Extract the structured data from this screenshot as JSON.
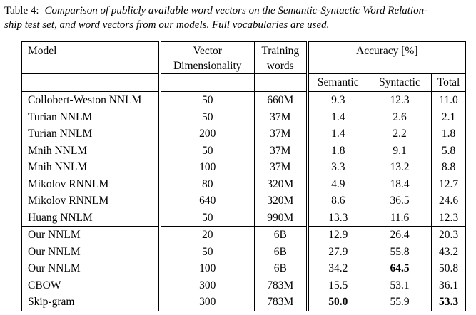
{
  "caption": {
    "label": "Table 4:",
    "line1": "Comparison of publicly available word vectors on the Semantic-Syntactic Word Relation-",
    "line2": "ship test set, and word vectors from our models. Full vocabularies are used."
  },
  "table": {
    "headers": {
      "model": "Model",
      "vector_dim_line1": "Vector",
      "vector_dim_line2": "Dimensionality",
      "training_line1": "Training",
      "training_line2": "words",
      "accuracy_group": "Accuracy [%]",
      "semantic": "Semantic",
      "syntactic": "Syntactic",
      "total": "Total"
    },
    "groups": [
      {
        "name": "public-word-vectors",
        "rows": [
          {
            "model": "Collobert-Weston NNLM",
            "dim": "50",
            "words": "660M",
            "semantic": "9.3",
            "syntactic": "12.3",
            "total": "11.0",
            "bold": []
          },
          {
            "model": "Turian NNLM",
            "dim": "50",
            "words": "37M",
            "semantic": "1.4",
            "syntactic": "2.6",
            "total": "2.1",
            "bold": []
          },
          {
            "model": "Turian NNLM",
            "dim": "200",
            "words": "37M",
            "semantic": "1.4",
            "syntactic": "2.2",
            "total": "1.8",
            "bold": []
          },
          {
            "model": "Mnih NNLM",
            "dim": "50",
            "words": "37M",
            "semantic": "1.8",
            "syntactic": "9.1",
            "total": "5.8",
            "bold": []
          },
          {
            "model": "Mnih NNLM",
            "dim": "100",
            "words": "37M",
            "semantic": "3.3",
            "syntactic": "13.2",
            "total": "8.8",
            "bold": []
          },
          {
            "model": "Mikolov RNNLM",
            "dim": "80",
            "words": "320M",
            "semantic": "4.9",
            "syntactic": "18.4",
            "total": "12.7",
            "bold": []
          },
          {
            "model": "Mikolov RNNLM",
            "dim": "640",
            "words": "320M",
            "semantic": "8.6",
            "syntactic": "36.5",
            "total": "24.6",
            "bold": []
          },
          {
            "model": "Huang NNLM",
            "dim": "50",
            "words": "990M",
            "semantic": "13.3",
            "syntactic": "11.6",
            "total": "12.3",
            "bold": []
          }
        ]
      },
      {
        "name": "our-models",
        "rows": [
          {
            "model": "Our NNLM",
            "dim": "20",
            "words": "6B",
            "semantic": "12.9",
            "syntactic": "26.4",
            "total": "20.3",
            "bold": []
          },
          {
            "model": "Our NNLM",
            "dim": "50",
            "words": "6B",
            "semantic": "27.9",
            "syntactic": "55.8",
            "total": "43.2",
            "bold": []
          },
          {
            "model": "Our NNLM",
            "dim": "100",
            "words": "6B",
            "semantic": "34.2",
            "syntactic": "64.5",
            "total": "50.8",
            "bold": [
              "syntactic"
            ]
          },
          {
            "model": "CBOW",
            "dim": "300",
            "words": "783M",
            "semantic": "15.5",
            "syntactic": "53.1",
            "total": "36.1",
            "bold": []
          },
          {
            "model": "Skip-gram",
            "dim": "300",
            "words": "783M",
            "semantic": "50.0",
            "syntactic": "55.9",
            "total": "53.3",
            "bold": [
              "semantic",
              "total"
            ]
          }
        ]
      }
    ]
  }
}
